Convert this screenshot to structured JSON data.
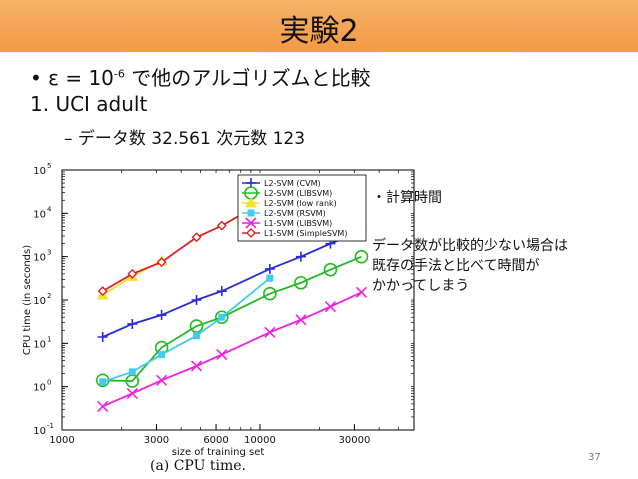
{
  "slide": {
    "title": "実験2",
    "bullet_prefix": "• ε = 10",
    "bullet_exp": "-6",
    "bullet_suffix": " で他のアルゴリズムと比較",
    "numbered_item": "1.  UCI adult",
    "sub_item": "–  データ数 32.561 次元数 123",
    "note_heading": "・計算時間",
    "note_lines": [
      "データ数が比較的少ない場合は",
      "既存の手法と比べて時間が",
      "かかってしまう"
    ],
    "page_number": "37",
    "caption": "(a) CPU time."
  },
  "chart_data": {
    "type": "line",
    "xscale": "log",
    "yscale": "log",
    "xlim": [
      1000,
      60000
    ],
    "ylim": [
      0.1,
      100000
    ],
    "xlabel": "size of training set",
    "ylabel": "CPU time (in seconds)",
    "xticks": [
      {
        "value": 1000,
        "label": "1000"
      },
      {
        "value": 3000,
        "label": "3000"
      },
      {
        "value": 6000,
        "label": "6000"
      },
      {
        "value": 10000,
        "label": "10000"
      },
      {
        "value": 30000,
        "label": "30000"
      }
    ],
    "yticks": [
      {
        "value": 0.1,
        "base": "10",
        "exp": "-1"
      },
      {
        "value": 1,
        "base": "10",
        "exp": "0"
      },
      {
        "value": 10,
        "base": "10",
        "exp": "1"
      },
      {
        "value": 100,
        "base": "10",
        "exp": "2"
      },
      {
        "value": 1000,
        "base": "10",
        "exp": "3"
      },
      {
        "value": 10000,
        "base": "10",
        "exp": "4"
      },
      {
        "value": 100000,
        "base": "10",
        "exp": "5"
      }
    ],
    "legend_position": "top-right",
    "series": [
      {
        "name": "L2-SVM (CVM)",
        "color": "#2b2bd6",
        "marker": "plus",
        "x": [
          1605,
          2265,
          3185,
          4781,
          6414,
          11220,
          16100,
          22696,
          32561
        ],
        "y": [
          14,
          28,
          45,
          100,
          160,
          520,
          1000,
          2000,
          4000
        ]
      },
      {
        "name": "L2-SVM (LIBSVM)",
        "color": "#22bb22",
        "marker": "circle",
        "x": [
          1605,
          2265,
          3185,
          4781,
          6414,
          11220,
          16100,
          22696,
          32561
        ],
        "y": [
          1.4,
          1.35,
          8,
          25,
          40,
          140,
          250,
          500,
          1000
        ]
      },
      {
        "name": "L2-SVM (low rank)",
        "color": "#f0e030",
        "marker": "triangle",
        "x": [
          1605,
          2265,
          3185
        ],
        "y": [
          130,
          350,
          800
        ]
      },
      {
        "name": "L2-SVM (RSVM)",
        "color": "#44ccee",
        "marker": "square",
        "x": [
          1605,
          2265,
          3185,
          4781,
          6414,
          11220
        ],
        "y": [
          1.3,
          2.2,
          5.5,
          15,
          40,
          320
        ]
      },
      {
        "name": "L1-SVM (LIBSVM)",
        "color": "#ee22dd",
        "marker": "cross",
        "x": [
          1605,
          2265,
          3185,
          4781,
          6414,
          11220,
          16100,
          22696,
          32561
        ],
        "y": [
          0.35,
          0.7,
          1.4,
          3,
          5.5,
          18,
          35,
          70,
          150
        ]
      },
      {
        "name": "L1-SVM (SimpleSVM)",
        "color": "#dd2222",
        "marker": "diamond",
        "x": [
          1605,
          2265,
          3185,
          4781,
          6414,
          11220
        ],
        "y": [
          160,
          400,
          750,
          2800,
          5200,
          22000
        ]
      }
    ]
  }
}
